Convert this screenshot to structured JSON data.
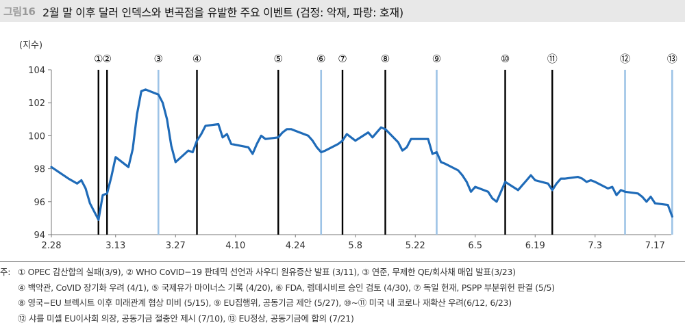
{
  "header": {
    "figure_label": "그림16",
    "title": "2월 말 이후 달러 인덱스와 변곡점을 유발한 주요 이벤트 (검정: 악재, 파랑: 호재)"
  },
  "chart_data": {
    "type": "line",
    "title": "2월 말 이후 달러 인덱스와 변곡점을 유발한 주요 이벤트 (검정: 악재, 파랑: 호재)",
    "ylabel": "(지수)",
    "xlabel": "",
    "ylim": [
      94,
      104
    ],
    "yticks": [
      94,
      96,
      98,
      100,
      102,
      104
    ],
    "xticks": [
      "2.28",
      "3.13",
      "3.27",
      "4.10",
      "4.24",
      "5.8",
      "5.22",
      "6.5",
      "6.19",
      "7.3",
      "7.17"
    ],
    "grid": false,
    "line_color": "#1f6bb8",
    "series": [
      {
        "name": "달러 인덱스",
        "points": [
          [
            "2.28",
            98.1
          ],
          [
            "3.2",
            97.4
          ],
          [
            "3.4",
            97.1
          ],
          [
            "3.5",
            97.3
          ],
          [
            "3.6",
            96.8
          ],
          [
            "3.7",
            95.9
          ],
          [
            "3.9",
            94.9
          ],
          [
            "3.10",
            96.4
          ],
          [
            "3.11",
            96.5
          ],
          [
            "3.12",
            97.5
          ],
          [
            "3.13",
            98.7
          ],
          [
            "3.16",
            98.1
          ],
          [
            "3.17",
            99.2
          ],
          [
            "3.18",
            101.3
          ],
          [
            "3.19",
            102.7
          ],
          [
            "3.20",
            102.8
          ],
          [
            "3.23",
            102.5
          ],
          [
            "3.24",
            102.0
          ],
          [
            "3.25",
            101.0
          ],
          [
            "3.26",
            99.4
          ],
          [
            "3.27",
            98.4
          ],
          [
            "3.30",
            99.1
          ],
          [
            "3.31",
            99.0
          ],
          [
            "4.1",
            99.7
          ],
          [
            "4.2",
            100.1
          ],
          [
            "4.3",
            100.6
          ],
          [
            "4.6",
            100.7
          ],
          [
            "4.7",
            99.9
          ],
          [
            "4.8",
            100.1
          ],
          [
            "4.9",
            99.5
          ],
          [
            "4.13",
            99.3
          ],
          [
            "4.14",
            98.9
          ],
          [
            "4.15",
            99.5
          ],
          [
            "4.16",
            100.0
          ],
          [
            "4.17",
            99.8
          ],
          [
            "4.20",
            99.9
          ],
          [
            "4.21",
            100.2
          ],
          [
            "4.22",
            100.4
          ],
          [
            "4.23",
            100.4
          ],
          [
            "4.24",
            100.3
          ],
          [
            "4.27",
            100.0
          ],
          [
            "4.28",
            99.7
          ],
          [
            "4.29",
            99.3
          ],
          [
            "4.30",
            99.0
          ],
          [
            "5.1",
            99.1
          ],
          [
            "5.4",
            99.5
          ],
          [
            "5.5",
            99.7
          ],
          [
            "5.6",
            100.1
          ],
          [
            "5.7",
            99.9
          ],
          [
            "5.8",
            99.7
          ],
          [
            "5.11",
            100.2
          ],
          [
            "5.12",
            99.9
          ],
          [
            "5.13",
            100.2
          ],
          [
            "5.14",
            100.5
          ],
          [
            "5.15",
            100.4
          ],
          [
            "5.18",
            99.6
          ],
          [
            "5.19",
            99.1
          ],
          [
            "5.20",
            99.3
          ],
          [
            "5.21",
            99.8
          ],
          [
            "5.22",
            99.8
          ],
          [
            "5.25",
            99.8
          ],
          [
            "5.26",
            98.9
          ],
          [
            "5.27",
            99.0
          ],
          [
            "5.28",
            98.4
          ],
          [
            "5.29",
            98.3
          ],
          [
            "6.1",
            97.9
          ],
          [
            "6.2",
            97.6
          ],
          [
            "6.3",
            97.2
          ],
          [
            "6.4",
            96.6
          ],
          [
            "6.5",
            96.9
          ],
          [
            "6.8",
            96.6
          ],
          [
            "6.9",
            96.2
          ],
          [
            "6.10",
            96.0
          ],
          [
            "6.11",
            96.6
          ],
          [
            "6.12",
            97.2
          ],
          [
            "6.15",
            96.7
          ],
          [
            "6.16",
            97.0
          ],
          [
            "6.17",
            97.3
          ],
          [
            "6.18",
            97.6
          ],
          [
            "6.19",
            97.3
          ],
          [
            "6.22",
            97.1
          ],
          [
            "6.23",
            96.7
          ],
          [
            "6.24",
            97.1
          ],
          [
            "6.25",
            97.4
          ],
          [
            "6.26",
            97.4
          ],
          [
            "6.29",
            97.5
          ],
          [
            "6.30",
            97.4
          ],
          [
            "7.1",
            97.2
          ],
          [
            "7.2",
            97.3
          ],
          [
            "7.3",
            97.2
          ],
          [
            "7.6",
            96.8
          ],
          [
            "7.7",
            96.9
          ],
          [
            "7.8",
            96.4
          ],
          [
            "7.9",
            96.7
          ],
          [
            "7.10",
            96.6
          ],
          [
            "7.13",
            96.5
          ],
          [
            "7.14",
            96.3
          ],
          [
            "7.15",
            96.0
          ],
          [
            "7.16",
            96.3
          ],
          [
            "7.17",
            95.9
          ],
          [
            "7.20",
            95.8
          ],
          [
            "7.21",
            95.1
          ]
        ]
      }
    ],
    "event_lines": [
      {
        "id": "①",
        "date": "3/9",
        "type": "악재",
        "color": "#000000"
      },
      {
        "id": "②",
        "date": "3/11",
        "type": "악재",
        "color": "#000000"
      },
      {
        "id": "③",
        "date": "3/23",
        "type": "호재",
        "color": "#9dc3e6"
      },
      {
        "id": "④",
        "date": "4/1",
        "type": "악재",
        "color": "#000000"
      },
      {
        "id": "⑤",
        "date": "4/20",
        "type": "악재",
        "color": "#000000"
      },
      {
        "id": "⑥",
        "date": "4/30",
        "type": "호재",
        "color": "#9dc3e6"
      },
      {
        "id": "⑦",
        "date": "5/5",
        "type": "악재",
        "color": "#000000"
      },
      {
        "id": "⑧",
        "date": "5/15",
        "type": "악재",
        "color": "#000000"
      },
      {
        "id": "⑨",
        "date": "5/27",
        "type": "호재",
        "color": "#9dc3e6"
      },
      {
        "id": "⑩",
        "date": "6/12",
        "type": "악재",
        "color": "#000000"
      },
      {
        "id": "⑪",
        "date": "6/23",
        "type": "악재",
        "color": "#000000"
      },
      {
        "id": "⑫",
        "date": "7/10",
        "type": "호재",
        "color": "#9dc3e6"
      },
      {
        "id": "⑬",
        "date": "7/21",
        "type": "호재",
        "color": "#9dc3e6"
      }
    ]
  },
  "notes": {
    "prefix": "주:",
    "lines": [
      "① OPEC 감산합의 실패(3/9), ② WHO CoVID−19 판데믹 선언과 사우디 원유증산 발표 (3/11), ③ 연준, 무제한 QE/회사채 매입 발표(3/23)",
      "④ 백악관, CoVID 장기화 우려 (4/1), ⑤ 국제유가 마이너스 기록 (4/20), ⑥ FDA, 렘데시비르 승인 검토 (4/30), ⑦ 독일 헌재, PSPP 부분위헌 판결 (5/5)",
      "⑧ 영국−EU 브렉시트 이후 미래관계 협상 미비 (5/15), ⑨ EU집행위, 공동기금 제안 (5/27), ⑩~⑪ 미국 내 코로나 재확산 우려(6/12, 6/23)",
      "⑫ 샤를 미셸 EU이사회 의장, 공동기금 절충안 제시 (7/10), ⑬ EU정상, 공동기금에 합의 (7/21)"
    ]
  }
}
